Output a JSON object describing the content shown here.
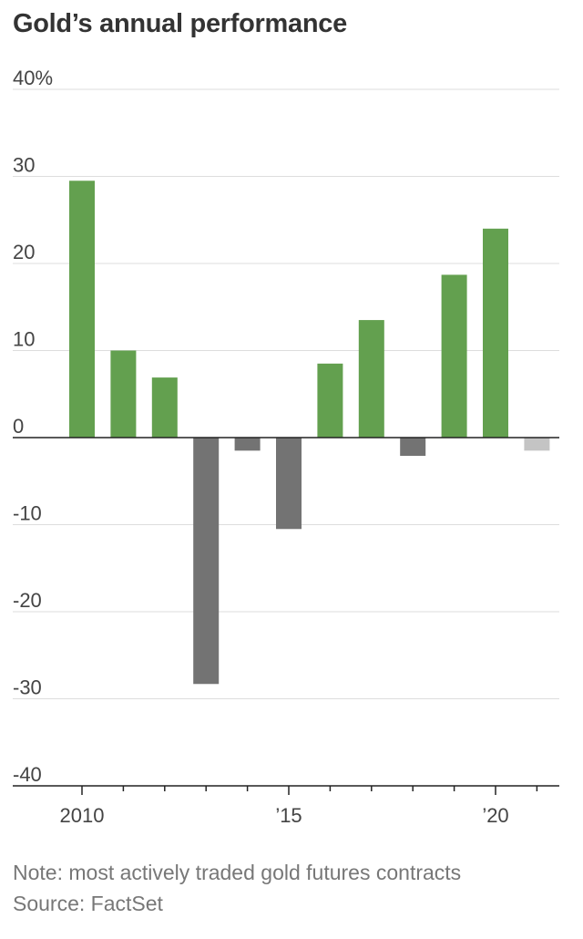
{
  "title": "Gold’s annual performance",
  "note": "Note: most actively traded gold futures contracts",
  "source": "Source: FactSet",
  "colors": {
    "positive": "#63a04f",
    "negative": "#737373",
    "current": "#c4c4c4",
    "grid": "#dddddd",
    "axis": "#222222"
  },
  "chart_data": {
    "type": "bar",
    "x": [
      2010,
      2011,
      2012,
      2013,
      2014,
      2015,
      2016,
      2017,
      2018,
      2019,
      2020,
      2021
    ],
    "values": [
      29.5,
      10,
      6.9,
      -28.3,
      -1.5,
      -10.5,
      8.5,
      13.5,
      -2.1,
      18.7,
      24.0,
      -1.5
    ],
    "ylim": [
      -40,
      40
    ],
    "yticks": [
      40,
      30,
      20,
      10,
      0,
      -10,
      -20,
      -30,
      -40
    ],
    "ytick_labels": [
      "40%",
      "30",
      "20",
      "10",
      "0",
      "-10",
      "-20",
      "-30",
      "-40"
    ],
    "xtick_labels": [
      {
        "x": 2010,
        "label": "2010"
      },
      {
        "x": 2015,
        "label": "’15"
      },
      {
        "x": 2020,
        "label": "’20"
      }
    ],
    "grid": true,
    "legend": false
  }
}
